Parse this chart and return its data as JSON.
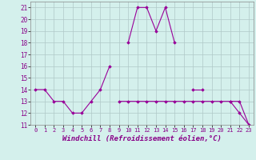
{
  "xlabel": "Windchill (Refroidissement éolien,°C)",
  "x": [
    0,
    1,
    2,
    3,
    4,
    5,
    6,
    7,
    8,
    9,
    10,
    11,
    12,
    13,
    14,
    15,
    16,
    17,
    18,
    19,
    20,
    21,
    22,
    23
  ],
  "series1": [
    14,
    14,
    13,
    13,
    12,
    12,
    13,
    14,
    16,
    null,
    18,
    21,
    21,
    19,
    21,
    18,
    null,
    14,
    14,
    null,
    null,
    13,
    13,
    11
  ],
  "series2": [
    null,
    null,
    null,
    null,
    null,
    null,
    null,
    null,
    null,
    13,
    13,
    13,
    13,
    13,
    13,
    13,
    13,
    13,
    13,
    13,
    13,
    13,
    12,
    11
  ],
  "ylim": [
    11,
    21.5
  ],
  "xlim": [
    -0.5,
    23.5
  ],
  "yticks": [
    11,
    12,
    13,
    14,
    15,
    16,
    17,
    18,
    19,
    20,
    21
  ],
  "xticks": [
    0,
    1,
    2,
    3,
    4,
    5,
    6,
    7,
    8,
    9,
    10,
    11,
    12,
    13,
    14,
    15,
    16,
    17,
    18,
    19,
    20,
    21,
    22,
    23
  ],
  "line_color": "#990099",
  "bg_color": "#d4f0ec",
  "grid_color": "#b0c8c8",
  "tick_fontsize": 5.0,
  "label_fontsize": 6.5
}
